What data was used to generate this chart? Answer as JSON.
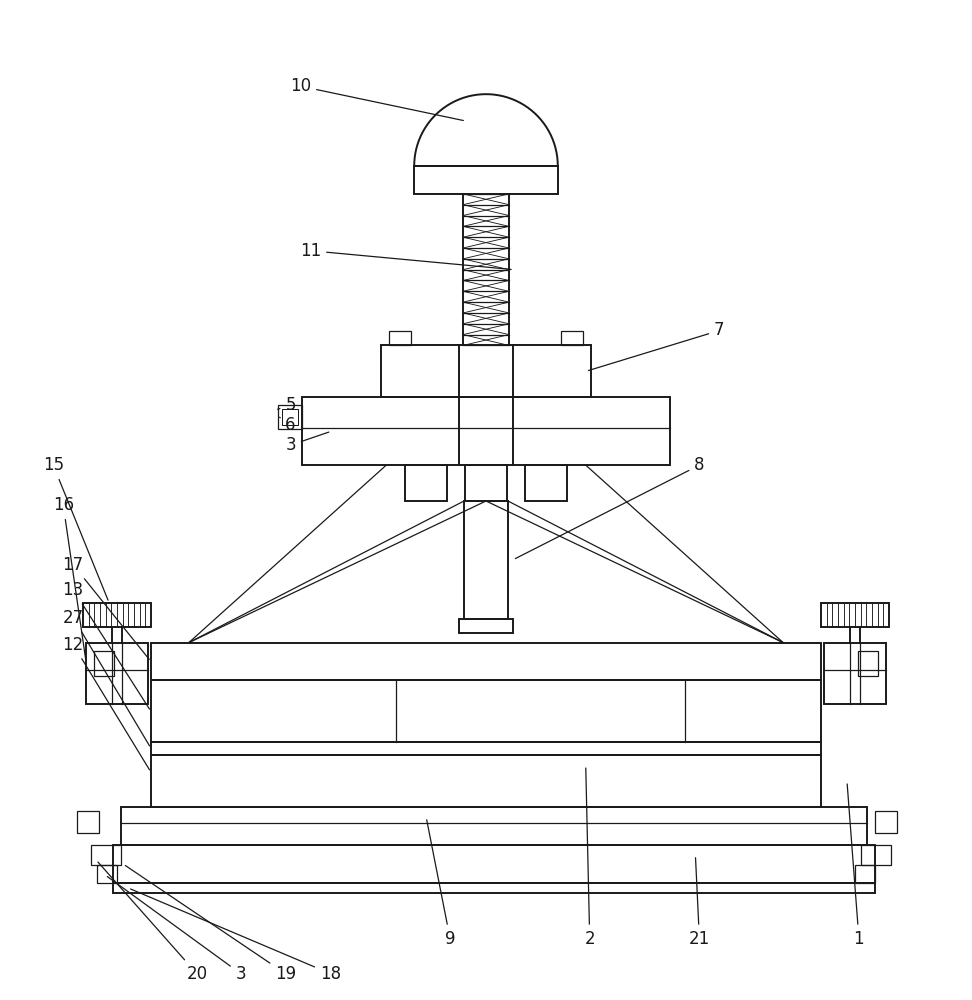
{
  "bg_color": "#ffffff",
  "line_color": "#1a1a1a",
  "lw": 1.4,
  "lw_thin": 0.9,
  "label_color": "#1a1a1a",
  "label_fontsize": 12,
  "fig_width": 9.72,
  "fig_height": 10.0
}
